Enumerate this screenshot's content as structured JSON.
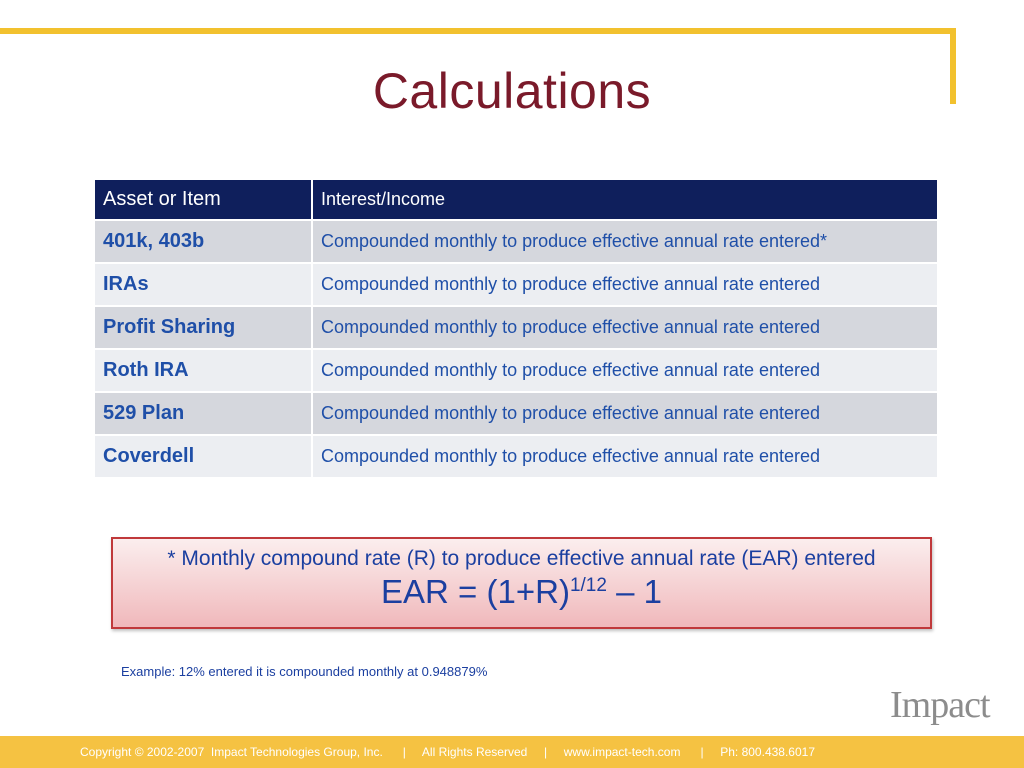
{
  "slide": {
    "title": "Calculations",
    "table": {
      "headers": [
        "Asset or Item",
        "Interest/Income"
      ],
      "rows": [
        {
          "item": "401k, 403b",
          "interest": "Compounded monthly to produce effective annual rate entered*"
        },
        {
          "item": "IRAs",
          "interest": "Compounded monthly to produce effective annual rate entered"
        },
        {
          "item": "Profit Sharing",
          "interest": "Compounded monthly to produce effective annual rate entered"
        },
        {
          "item": "Roth IRA",
          "interest": "Compounded monthly to produce effective annual rate entered"
        },
        {
          "item": "529 Plan",
          "interest": "Compounded monthly to produce effective annual rate entered"
        },
        {
          "item": "Coverdell",
          "interest": "Compounded monthly to produce effective annual rate entered"
        }
      ]
    },
    "note": {
      "line1": "* Monthly compound rate (R) to produce effective annual rate (EAR) entered",
      "formula_base": "EAR = (1+R)",
      "formula_exponent": "1/12",
      "formula_tail": " – 1"
    },
    "example": "Example: 12% entered  it is compounded monthly at 0.948879%",
    "logo_text": "Impact",
    "footer": "Copyright © 2002-2007  Impact Technologies Group, Inc.      |     All Rights Reserved     |     www.impact-tech.com      |     Ph: 800.438.6017"
  },
  "colors": {
    "accent_gold": "#f2c12e",
    "title_maroon": "#7a1a2a",
    "header_navy": "#0f1f5c",
    "text_blue": "#1f4fa8",
    "note_border": "#c0393b"
  }
}
